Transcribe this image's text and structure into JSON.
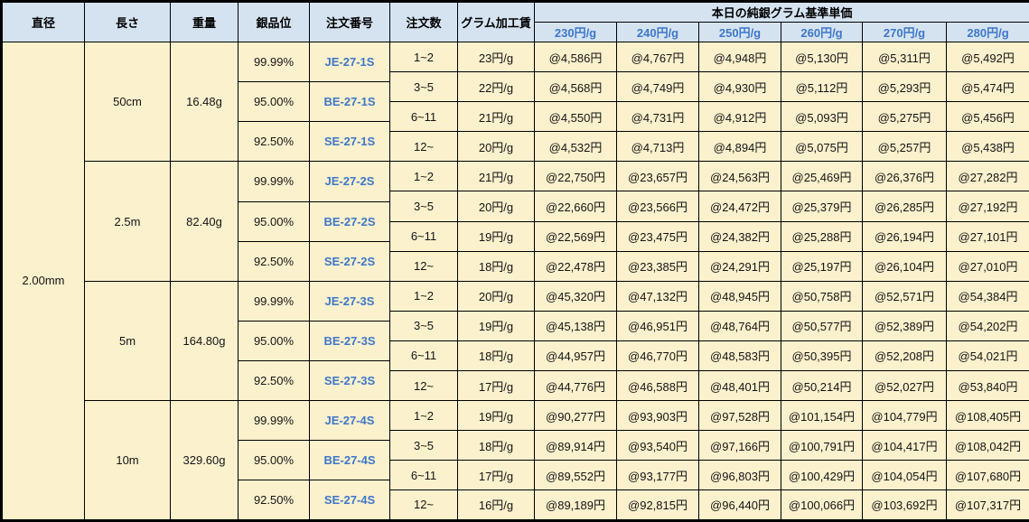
{
  "table": {
    "column_headers": [
      "直径",
      "長さ",
      "重量",
      "銀品位",
      "注文番号",
      "注文数",
      "グラム加工賃"
    ],
    "price_group_header": "本日の純銀グラム基準単価",
    "price_column_headers": [
      "230円/g",
      "240円/g",
      "250円/g",
      "260円/g",
      "270円/g",
      "280円/g"
    ],
    "diameter": "2.00mm",
    "blocks": [
      {
        "length": "50cm",
        "weight": "16.48g",
        "purities": [
          {
            "purity": "99.99%",
            "order_no": "JE-27-1S"
          },
          {
            "purity": "95.00%",
            "order_no": "BE-27-1S"
          },
          {
            "purity": "92.50%",
            "order_no": "SE-27-1S"
          }
        ],
        "rows": [
          {
            "qty": "1~2",
            "fee": "23円/g",
            "prices": [
              "@4,586円",
              "@4,767円",
              "@4,948円",
              "@5,130円",
              "@5,311円",
              "@5,492円"
            ]
          },
          {
            "qty": "3~5",
            "fee": "22円/g",
            "prices": [
              "@4,568円",
              "@4,749円",
              "@4,930円",
              "@5,112円",
              "@5,293円",
              "@5,474円"
            ]
          },
          {
            "qty": "6~11",
            "fee": "21円/g",
            "prices": [
              "@4,550円",
              "@4,731円",
              "@4,912円",
              "@5,093円",
              "@5,275円",
              "@5,456円"
            ]
          },
          {
            "qty": "12~",
            "fee": "20円/g",
            "prices": [
              "@4,532円",
              "@4,713円",
              "@4,894円",
              "@5,075円",
              "@5,257円",
              "@5,438円"
            ]
          }
        ]
      },
      {
        "length": "2.5m",
        "weight": "82.40g",
        "purities": [
          {
            "purity": "99.99%",
            "order_no": "JE-27-2S"
          },
          {
            "purity": "95.00%",
            "order_no": "BE-27-2S"
          },
          {
            "purity": "92.50%",
            "order_no": "SE-27-2S"
          }
        ],
        "rows": [
          {
            "qty": "1~2",
            "fee": "21円/g",
            "prices": [
              "@22,750円",
              "@23,657円",
              "@24,563円",
              "@25,469円",
              "@26,376円",
              "@27,282円"
            ]
          },
          {
            "qty": "3~5",
            "fee": "20円/g",
            "prices": [
              "@22,660円",
              "@23,566円",
              "@24,472円",
              "@25,379円",
              "@26,285円",
              "@27,192円"
            ]
          },
          {
            "qty": "6~11",
            "fee": "19円/g",
            "prices": [
              "@22,569円",
              "@23,475円",
              "@24,382円",
              "@25,288円",
              "@26,194円",
              "@27,101円"
            ]
          },
          {
            "qty": "12~",
            "fee": "18円/g",
            "prices": [
              "@22,478円",
              "@23,385円",
              "@24,291円",
              "@25,197円",
              "@26,104円",
              "@27,010円"
            ]
          }
        ]
      },
      {
        "length": "5m",
        "weight": "164.80g",
        "purities": [
          {
            "purity": "99.99%",
            "order_no": "JE-27-3S"
          },
          {
            "purity": "95.00%",
            "order_no": "BE-27-3S"
          },
          {
            "purity": "92.50%",
            "order_no": "SE-27-3S"
          }
        ],
        "rows": [
          {
            "qty": "1~2",
            "fee": "20円/g",
            "prices": [
              "@45,320円",
              "@47,132円",
              "@48,945円",
              "@50,758円",
              "@52,571円",
              "@54,384円"
            ]
          },
          {
            "qty": "3~5",
            "fee": "19円/g",
            "prices": [
              "@45,138円",
              "@46,951円",
              "@48,764円",
              "@50,577円",
              "@52,389円",
              "@54,202円"
            ]
          },
          {
            "qty": "6~11",
            "fee": "18円/g",
            "prices": [
              "@44,957円",
              "@46,770円",
              "@48,583円",
              "@50,395円",
              "@52,208円",
              "@54,021円"
            ]
          },
          {
            "qty": "12~",
            "fee": "17円/g",
            "prices": [
              "@44,776円",
              "@46,588円",
              "@48,401円",
              "@50,214円",
              "@52,027円",
              "@53,840円"
            ]
          }
        ]
      },
      {
        "length": "10m",
        "weight": "329.60g",
        "purities": [
          {
            "purity": "99.99%",
            "order_no": "JE-27-4S"
          },
          {
            "purity": "95.00%",
            "order_no": "BE-27-4S"
          },
          {
            "purity": "92.50%",
            "order_no": "SE-27-4S"
          }
        ],
        "rows": [
          {
            "qty": "1~2",
            "fee": "19円/g",
            "prices": [
              "@90,277円",
              "@93,903円",
              "@97,528円",
              "@101,154円",
              "@104,779円",
              "@108,405円"
            ]
          },
          {
            "qty": "3~5",
            "fee": "18円/g",
            "prices": [
              "@89,914円",
              "@93,540円",
              "@97,166円",
              "@100,791円",
              "@104,417円",
              "@108,042円"
            ]
          },
          {
            "qty": "6~11",
            "fee": "17円/g",
            "prices": [
              "@89,552円",
              "@93,177円",
              "@96,803円",
              "@100,429円",
              "@104,054円",
              "@107,680円"
            ]
          },
          {
            "qty": "12~",
            "fee": "16円/g",
            "prices": [
              "@89,189円",
              "@92,815円",
              "@96,440円",
              "@100,066円",
              "@103,692円",
              "@107,317円"
            ]
          }
        ]
      }
    ],
    "colors": {
      "header_bg": "#D5E3F1",
      "header_text": "#000000",
      "accent_blue": "#3D77C9",
      "cell_bg": "#FCF1CD",
      "cell_text": "#141414",
      "border": "#000000"
    }
  }
}
